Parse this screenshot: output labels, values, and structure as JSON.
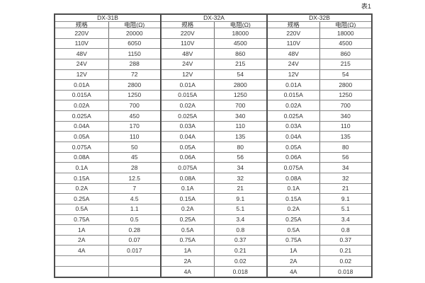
{
  "page": {
    "caption": "表1"
  },
  "table": {
    "groups": [
      {
        "name": "DX-31B",
        "spec_header": "规格",
        "resistance_header": "电阻(Ω)",
        "rows": [
          [
            "220V",
            "20000"
          ],
          [
            "110V",
            "6050"
          ],
          [
            "48V",
            "1150"
          ],
          [
            "24V",
            "288"
          ],
          [
            "12V",
            "72"
          ],
          [
            "0.01A",
            "2800"
          ],
          [
            "0.015A",
            "1250"
          ],
          [
            "0.02A",
            "700"
          ],
          [
            "0.025A",
            "450"
          ],
          [
            "0.04A",
            "170"
          ],
          [
            "0.05A",
            "110"
          ],
          [
            "0.075A",
            "50"
          ],
          [
            "0.08A",
            "45"
          ],
          [
            "0.1A",
            "28"
          ],
          [
            "0.15A",
            "12.5"
          ],
          [
            "0.2A",
            "7"
          ],
          [
            "0.25A",
            "4.5"
          ],
          [
            "0.5A",
            "1.1"
          ],
          [
            "0.75A",
            "0.5"
          ],
          [
            "1A",
            "0.28"
          ],
          [
            "2A",
            "0.07"
          ],
          [
            "4A",
            "0.017"
          ],
          [
            "",
            ""
          ],
          [
            "",
            ""
          ]
        ]
      },
      {
        "name": "DX-32A",
        "spec_header": "规格",
        "resistance_header": "电阻(Ω)",
        "rows": [
          [
            "220V",
            "18000"
          ],
          [
            "110V",
            "4500"
          ],
          [
            "48V",
            "860"
          ],
          [
            "24V",
            "215"
          ],
          [
            "12V",
            "54"
          ],
          [
            "0.01A",
            "2800"
          ],
          [
            "0.015A",
            "1250"
          ],
          [
            "0.02A",
            "700"
          ],
          [
            "0.025A",
            "340"
          ],
          [
            "0.03A",
            "110"
          ],
          [
            "0.04A",
            "135"
          ],
          [
            "0.05A",
            "80"
          ],
          [
            "0.06A",
            "56"
          ],
          [
            "0.075A",
            "34"
          ],
          [
            "0.08A",
            "32"
          ],
          [
            "0.1A",
            "21"
          ],
          [
            "0.15A",
            "9.1"
          ],
          [
            "0.2A",
            "5.1"
          ],
          [
            "0.25A",
            "3.4"
          ],
          [
            "0.5A",
            "0.8"
          ],
          [
            "0.75A",
            "0.37"
          ],
          [
            "1A",
            "0.21"
          ],
          [
            "2A",
            "0.02"
          ],
          [
            "4A",
            "0.018"
          ]
        ]
      },
      {
        "name": "DX-32B",
        "spec_header": "规格",
        "resistance_header": "电阻(Ω)",
        "rows": [
          [
            "220V",
            "18000"
          ],
          [
            "110V",
            "4500"
          ],
          [
            "48V",
            "860"
          ],
          [
            "24V",
            "215"
          ],
          [
            "12V",
            "54"
          ],
          [
            "0.01A",
            "2800"
          ],
          [
            "0.015A",
            "1250"
          ],
          [
            "0.02A",
            "700"
          ],
          [
            "0.025A",
            "340"
          ],
          [
            "0.03A",
            "110"
          ],
          [
            "0.04A",
            "135"
          ],
          [
            "0.05A",
            "80"
          ],
          [
            "0.06A",
            "56"
          ],
          [
            "0.075A",
            "34"
          ],
          [
            "0.08A",
            "32"
          ],
          [
            "0.1A",
            "21"
          ],
          [
            "0.15A",
            "9.1"
          ],
          [
            "0.2A",
            "5.1"
          ],
          [
            "0.25A",
            "3.4"
          ],
          [
            "0.5A",
            "0.8"
          ],
          [
            "0.75A",
            "0.37"
          ],
          [
            "1A",
            "0.21"
          ],
          [
            "2A",
            "0.02"
          ],
          [
            "4A",
            "0.018"
          ]
        ]
      }
    ]
  }
}
